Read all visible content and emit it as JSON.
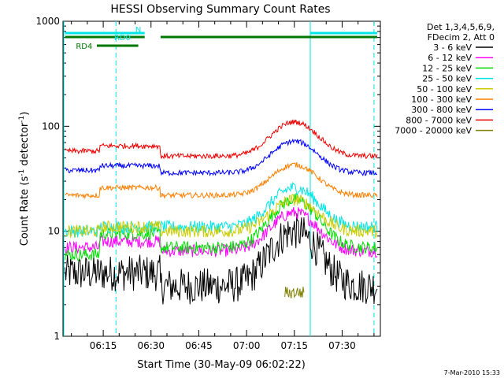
{
  "chart_data": {
    "type": "line",
    "title": "HESSI Observing Summary Count Rates",
    "xlabel": "Start Time (30-May-09 06:02:22)",
    "ylabel": "Count Rate (s⁻¹ detector⁻¹)",
    "ylabel_main": "Count Rate (s",
    "ylabel_mid": " detector",
    "ylabel_end": ")",
    "ylabel_sup": "-1",
    "yscale": "log",
    "ylim": [
      1,
      1000
    ],
    "xlim": [
      "06:02:22",
      "07:42:00"
    ],
    "x_ticks": [
      "06:15",
      "06:30",
      "06:45",
      "07:00",
      "07:15",
      "07:30"
    ],
    "y_ticks": [
      "1",
      "10",
      "100",
      "1000"
    ],
    "legend_header": [
      "Det 1,3,4,5,6,9,",
      "FDecim 2, Att 0"
    ],
    "legend_position": "right",
    "footer_date": "7-Mar-2010 15:33",
    "series": [
      {
        "name": "3 - 6 keV",
        "color": "#000000",
        "values_approx": {
          "06:05": 4,
          "06:30": 4,
          "06:45": 3,
          "07:00": 3,
          "07:15": 10,
          "07:30": 4,
          "07:40": 4
        }
      },
      {
        "name": "6 - 12 keV",
        "color": "#ff00ff",
        "values_approx": {
          "06:05": 7,
          "06:30": 8,
          "06:45": 6.5,
          "07:00": 6.5,
          "07:15": 15,
          "07:30": 8,
          "07:40": 7
        }
      },
      {
        "name": "12 - 25 keV",
        "color": "#00dd00",
        "values_approx": {
          "06:05": 6,
          "06:30": 9.5,
          "06:45": 7,
          "07:00": 7,
          "07:15": 20,
          "07:30": 8,
          "07:40": 6
        }
      },
      {
        "name": "25 - 50 keV",
        "color": "#00e5e5",
        "values_approx": {
          "06:05": 10,
          "06:30": 11,
          "06:45": 11,
          "07:00": 11,
          "07:15": 26,
          "07:30": 12,
          "07:40": 10
        }
      },
      {
        "name": "50 - 100 keV",
        "color": "#cccc00",
        "values_approx": {
          "06:05": 10,
          "06:30": 11,
          "06:45": 10,
          "07:00": 10,
          "07:15": 20,
          "07:30": 10,
          "07:40": 9
        }
      },
      {
        "name": "100 - 300 keV",
        "color": "#ff7f00",
        "values_approx": {
          "06:05": 22,
          "06:30": 26,
          "06:45": 22,
          "07:00": 22,
          "07:15": 43,
          "07:30": 23,
          "07:40": 20
        }
      },
      {
        "name": "300 - 800 keV",
        "color": "#0000ff",
        "values_approx": {
          "06:05": 38,
          "06:30": 42,
          "06:45": 36,
          "07:00": 36,
          "07:15": 72,
          "07:30": 38,
          "07:40": 35
        }
      },
      {
        "name": "800 - 7000 keV",
        "color": "#ee0000",
        "values_approx": {
          "06:05": 58,
          "06:30": 65,
          "06:45": 52,
          "07:00": 52,
          "07:15": 110,
          "07:30": 56,
          "07:40": 52
        }
      },
      {
        "name": "7000 - 20000 keV",
        "color": "#808000",
        "values_approx": {
          "07:12": 2.5,
          "07:15": 3,
          "07:18": 2
        }
      }
    ],
    "flags": [
      {
        "name": "N",
        "color": "#00e5e5"
      },
      {
        "name": "RD0",
        "color": "#00e5e5"
      },
      {
        "name": "RD4",
        "color": "#007700"
      }
    ]
  }
}
